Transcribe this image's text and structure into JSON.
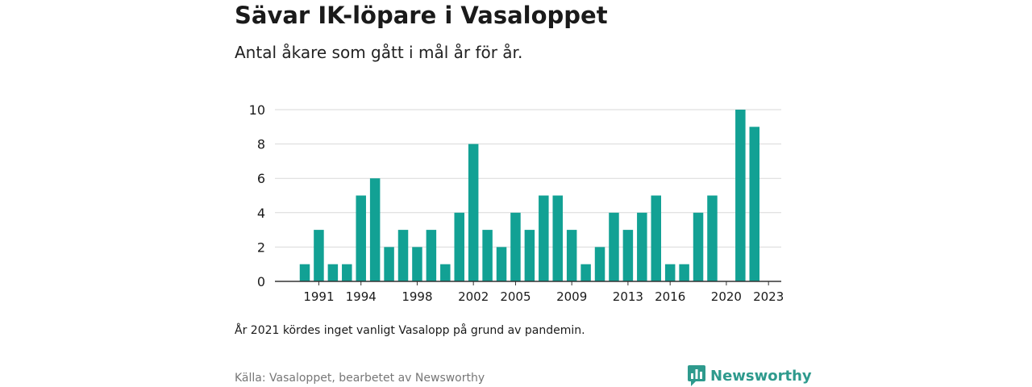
{
  "header": {
    "title": "Sävar IK-löpare i Vasaloppet",
    "subtitle": "Antal åkare som gått i mål år för år."
  },
  "footer": {
    "note": "År 2021 kördes inget vanligt Vasalopp på grund av pandemin.",
    "source": "Källa: Vasaloppet, bearbetet av Newsworthy",
    "brand": "Newsworthy"
  },
  "colors": {
    "bar": "#12a194",
    "grid": "#d9d9d9",
    "axis": "#333333",
    "brand": "#2e9a8d"
  },
  "chart_data": {
    "type": "bar",
    "x": [
      1990,
      1991,
      1992,
      1993,
      1994,
      1995,
      1996,
      1997,
      1998,
      1999,
      2000,
      2001,
      2002,
      2003,
      2004,
      2005,
      2006,
      2007,
      2008,
      2009,
      2010,
      2011,
      2012,
      2013,
      2014,
      2015,
      2016,
      2017,
      2018,
      2019,
      2020,
      2021,
      2022,
      2023
    ],
    "values": [
      1,
      3,
      1,
      1,
      5,
      6,
      2,
      3,
      2,
      3,
      1,
      4,
      8,
      3,
      2,
      4,
      3,
      5,
      5,
      3,
      1,
      2,
      4,
      3,
      4,
      5,
      1,
      1,
      4,
      5,
      0,
      10,
      9,
      null
    ],
    "x_tick_labels": [
      "1991",
      "1994",
      "1998",
      "2002",
      "2005",
      "2009",
      "2013",
      "2016",
      "2020",
      "2023"
    ],
    "y_ticks": [
      0,
      2,
      4,
      6,
      8,
      10
    ],
    "ylim": [
      0,
      10
    ],
    "title": "Sävar IK-löpare i Vasaloppet",
    "subtitle": "Antal åkare som gått i mål år för år.",
    "xlabel": "",
    "ylabel": "",
    "grid": true,
    "legend": "none"
  }
}
